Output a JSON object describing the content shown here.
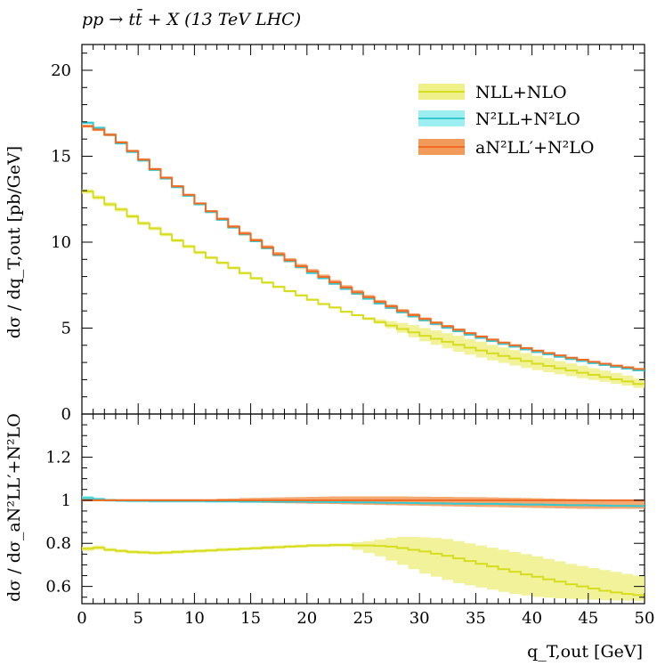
{
  "title": "pp → tt̄ + X (13 TeV LHC)",
  "xlabel": "q_T,out [GeV]",
  "ylabel_main": "dσ / dq_T,out [pb/GeV]",
  "ylabel_ratio": "dσ / dσ_aN²LL′+N²LO",
  "legend_labels": [
    "NLL+NLO",
    "N²LL+N²LO",
    "aN²LL′+N²LO"
  ],
  "colors": {
    "nll": "#d6dd1e",
    "nll_band": "#f0f08a",
    "n2ll": "#37c9d0",
    "n2ll_band": "#9deef0",
    "an2ll": "#ef6a22",
    "an2ll_band": "#f29a5a"
  },
  "chart_data": {
    "type": "line",
    "step": true,
    "x_edges": [
      0,
      1,
      2,
      3,
      4,
      5,
      6,
      7,
      8,
      9,
      10,
      11,
      12,
      13,
      14,
      15,
      16,
      17,
      18,
      19,
      20,
      21,
      22,
      23,
      24,
      25,
      26,
      27,
      28,
      29,
      30,
      31,
      32,
      33,
      34,
      35,
      36,
      37,
      38,
      39,
      40,
      41,
      42,
      43,
      44,
      45,
      46,
      47,
      48,
      49,
      50
    ],
    "xlim": [
      0,
      50
    ],
    "main": {
      "ylim": [
        0,
        21.5
      ],
      "yticks": [
        0,
        5,
        10,
        15,
        20
      ],
      "series": [
        {
          "name": "NLL+NLO",
          "values": [
            12.95,
            12.6,
            12.2,
            11.9,
            11.5,
            11.1,
            10.8,
            10.45,
            10.1,
            9.75,
            9.4,
            9.1,
            8.8,
            8.5,
            8.2,
            7.9,
            7.65,
            7.4,
            7.15,
            6.9,
            6.65,
            6.4,
            6.2,
            5.95,
            5.75,
            5.55,
            5.35,
            5.15,
            4.95,
            4.75,
            4.55,
            4.38,
            4.2,
            4.03,
            3.86,
            3.7,
            3.53,
            3.38,
            3.23,
            3.08,
            2.93,
            2.8,
            2.66,
            2.53,
            2.4,
            2.28,
            2.15,
            2.02,
            1.9,
            1.75
          ],
          "band_rel_low": [
            0.99,
            0.99,
            0.99,
            0.99,
            0.99,
            0.99,
            0.99,
            0.99,
            0.99,
            0.99,
            0.99,
            0.99,
            0.99,
            0.99,
            0.99,
            0.99,
            0.99,
            0.99,
            0.99,
            0.99,
            0.99,
            0.99,
            0.99,
            0.99,
            0.99,
            0.985,
            0.98,
            0.97,
            0.955,
            0.94,
            0.93,
            0.92,
            0.91,
            0.9,
            0.895,
            0.89,
            0.885,
            0.88,
            0.875,
            0.87,
            0.87,
            0.87,
            0.87,
            0.87,
            0.87,
            0.87,
            0.87,
            0.87,
            0.87,
            0.87
          ],
          "band_rel_high": [
            1.01,
            1.01,
            1.01,
            1.01,
            1.01,
            1.01,
            1.01,
            1.01,
            1.01,
            1.01,
            1.01,
            1.01,
            1.01,
            1.01,
            1.01,
            1.01,
            1.01,
            1.01,
            1.01,
            1.01,
            1.01,
            1.01,
            1.01,
            1.01,
            1.01,
            1.015,
            1.03,
            1.05,
            1.07,
            1.09,
            1.1,
            1.11,
            1.12,
            1.13,
            1.13,
            1.14,
            1.14,
            1.145,
            1.15,
            1.15,
            1.155,
            1.16,
            1.16,
            1.165,
            1.17,
            1.17,
            1.175,
            1.18,
            1.18,
            1.18
          ]
        },
        {
          "name": "N²LL+N²LO",
          "values": [
            16.95,
            16.65,
            16.25,
            15.75,
            15.25,
            14.75,
            14.2,
            13.7,
            13.2,
            12.7,
            12.2,
            11.75,
            11.3,
            10.85,
            10.45,
            10.05,
            9.65,
            9.25,
            8.9,
            8.55,
            8.2,
            7.9,
            7.58,
            7.28,
            7.0,
            6.7,
            6.43,
            6.18,
            5.92,
            5.68,
            5.45,
            5.24,
            5.02,
            4.82,
            4.62,
            4.43,
            4.25,
            4.08,
            3.92,
            3.76,
            3.61,
            3.47,
            3.33,
            3.2,
            3.08,
            2.96,
            2.85,
            2.74,
            2.64,
            2.54
          ],
          "band_rel_low": [
            0.995,
            0.995,
            0.995,
            0.995,
            0.995,
            0.995,
            0.995,
            0.995,
            0.995,
            0.995,
            0.995,
            0.995,
            0.995,
            0.995,
            0.995,
            0.995,
            0.995,
            0.995,
            0.995,
            0.995,
            0.995,
            0.995,
            0.995,
            0.995,
            0.995,
            0.995,
            0.995,
            0.995,
            0.995,
            0.995,
            0.995,
            0.995,
            0.995,
            0.995,
            0.995,
            0.995,
            0.995,
            0.995,
            0.995,
            0.995,
            0.995,
            0.995,
            0.995,
            0.995,
            0.995,
            0.995,
            0.995,
            0.995,
            0.995,
            0.995
          ],
          "band_rel_high": [
            1.005,
            1.005,
            1.005,
            1.005,
            1.005,
            1.005,
            1.005,
            1.005,
            1.005,
            1.005,
            1.005,
            1.005,
            1.005,
            1.005,
            1.005,
            1.005,
            1.005,
            1.005,
            1.005,
            1.005,
            1.005,
            1.005,
            1.005,
            1.005,
            1.005,
            1.005,
            1.005,
            1.005,
            1.005,
            1.005,
            1.005,
            1.005,
            1.005,
            1.005,
            1.005,
            1.005,
            1.005,
            1.005,
            1.005,
            1.005,
            1.005,
            1.005,
            1.005,
            1.005,
            1.005,
            1.005,
            1.005,
            1.005,
            1.005,
            1.005
          ]
        },
        {
          "name": "aN²LL′+N²LO",
          "values": [
            16.75,
            16.55,
            16.25,
            15.8,
            15.3,
            14.8,
            14.25,
            13.75,
            13.25,
            12.75,
            12.25,
            11.8,
            11.35,
            10.9,
            10.5,
            10.1,
            9.7,
            9.3,
            8.95,
            8.6,
            8.3,
            7.98,
            7.66,
            7.36,
            7.08,
            6.8,
            6.52,
            6.26,
            6.0,
            5.76,
            5.53,
            5.31,
            5.1,
            4.9,
            4.7,
            4.51,
            4.33,
            4.16,
            4.0,
            3.84,
            3.69,
            3.55,
            3.41,
            3.28,
            3.16,
            3.04,
            2.93,
            2.82,
            2.72,
            2.62
          ],
          "band_rel_low": [
            0.995,
            0.995,
            0.995,
            0.995,
            0.995,
            0.995,
            0.995,
            0.995,
            0.995,
            0.995,
            0.995,
            0.995,
            0.993,
            0.992,
            0.99,
            0.99,
            0.988,
            0.987,
            0.986,
            0.985,
            0.984,
            0.983,
            0.982,
            0.981,
            0.98,
            0.979,
            0.978,
            0.977,
            0.976,
            0.975,
            0.974,
            0.973,
            0.972,
            0.971,
            0.97,
            0.969,
            0.968,
            0.967,
            0.966,
            0.965,
            0.964,
            0.963,
            0.962,
            0.961,
            0.96,
            0.96,
            0.96,
            0.96,
            0.96,
            0.96
          ],
          "band_rel_high": [
            1.005,
            1.005,
            1.005,
            1.005,
            1.005,
            1.005,
            1.005,
            1.005,
            1.005,
            1.005,
            1.005,
            1.005,
            1.007,
            1.008,
            1.01,
            1.011,
            1.012,
            1.013,
            1.014,
            1.015,
            1.016,
            1.017,
            1.018,
            1.018,
            1.018,
            1.018,
            1.018,
            1.018,
            1.018,
            1.017,
            1.017,
            1.016,
            1.016,
            1.015,
            1.015,
            1.014,
            1.013,
            1.012,
            1.011,
            1.01,
            1.009,
            1.008,
            1.007,
            1.006,
            1.005,
            1.004,
            1.003,
            1.002,
            1.001,
            1.0
          ]
        }
      ]
    },
    "ratio": {
      "ylim": [
        0.52,
        1.4
      ],
      "yticks": [
        0.6,
        0.8,
        1,
        1.2
      ],
      "ytick_labels": [
        "0.6",
        "0.8",
        "1",
        "1.2"
      ],
      "series": [
        {
          "name": "NLL+NLO",
          "values": [
            0.775,
            0.78,
            0.77,
            0.765,
            0.76,
            0.758,
            0.755,
            0.757,
            0.76,
            0.762,
            0.765,
            0.767,
            0.77,
            0.772,
            0.775,
            0.777,
            0.78,
            0.782,
            0.785,
            0.787,
            0.79,
            0.79,
            0.792,
            0.792,
            0.79,
            0.79,
            0.788,
            0.785,
            0.778,
            0.77,
            0.762,
            0.752,
            0.742,
            0.73,
            0.718,
            0.705,
            0.693,
            0.68,
            0.668,
            0.656,
            0.645,
            0.633,
            0.622,
            0.61,
            0.6,
            0.59,
            0.58,
            0.572,
            0.565,
            0.56
          ],
          "band_low": [
            0.765,
            0.77,
            0.762,
            0.757,
            0.752,
            0.75,
            0.748,
            0.75,
            0.752,
            0.755,
            0.757,
            0.76,
            0.762,
            0.765,
            0.768,
            0.77,
            0.772,
            0.775,
            0.778,
            0.78,
            0.783,
            0.783,
            0.784,
            0.784,
            0.77,
            0.755,
            0.74,
            0.72,
            0.7,
            0.68,
            0.66,
            0.645,
            0.63,
            0.615,
            0.605,
            0.595,
            0.585,
            0.575,
            0.565,
            0.558,
            0.552,
            0.548,
            0.545,
            0.542,
            0.54,
            0.538,
            0.536,
            0.535,
            0.534,
            0.533
          ],
          "band_high": [
            0.785,
            0.79,
            0.778,
            0.773,
            0.768,
            0.766,
            0.763,
            0.765,
            0.768,
            0.77,
            0.773,
            0.775,
            0.778,
            0.78,
            0.782,
            0.785,
            0.788,
            0.79,
            0.792,
            0.795,
            0.797,
            0.798,
            0.8,
            0.8,
            0.805,
            0.81,
            0.818,
            0.825,
            0.83,
            0.83,
            0.828,
            0.825,
            0.82,
            0.81,
            0.8,
            0.79,
            0.78,
            0.77,
            0.76,
            0.75,
            0.74,
            0.728,
            0.717,
            0.705,
            0.695,
            0.685,
            0.676,
            0.667,
            0.658,
            0.65
          ]
        },
        {
          "name": "N²LL+N²LO",
          "values": [
            1.01,
            1.005,
            1.0,
            0.998,
            0.997,
            0.997,
            0.996,
            0.996,
            0.996,
            0.996,
            0.996,
            0.995,
            0.995,
            0.995,
            0.994,
            0.994,
            0.994,
            0.993,
            0.993,
            0.993,
            0.992,
            0.992,
            0.991,
            0.991,
            0.99,
            0.99,
            0.989,
            0.988,
            0.988,
            0.987,
            0.986,
            0.986,
            0.985,
            0.984,
            0.984,
            0.983,
            0.983,
            0.982,
            0.981,
            0.98,
            0.98,
            0.979,
            0.978,
            0.977,
            0.977,
            0.976,
            0.975,
            0.974,
            0.974,
            0.973
          ],
          "band_low": [
            1.0,
            0.998,
            0.993,
            0.991,
            0.99,
            0.99,
            0.989,
            0.989,
            0.989,
            0.989,
            0.989,
            0.988,
            0.988,
            0.988,
            0.987,
            0.987,
            0.987,
            0.986,
            0.986,
            0.986,
            0.985,
            0.985,
            0.984,
            0.984,
            0.983,
            0.983,
            0.982,
            0.981,
            0.981,
            0.98,
            0.979,
            0.979,
            0.978,
            0.977,
            0.977,
            0.976,
            0.976,
            0.975,
            0.974,
            0.973,
            0.973,
            0.972,
            0.971,
            0.97,
            0.97,
            0.969,
            0.968,
            0.967,
            0.967,
            0.966
          ],
          "band_high": [
            1.02,
            1.012,
            1.007,
            1.005,
            1.004,
            1.004,
            1.003,
            1.003,
            1.003,
            1.003,
            1.003,
            1.002,
            1.002,
            1.002,
            1.001,
            1.001,
            1.001,
            1.0,
            1.0,
            1.0,
            0.999,
            0.999,
            0.998,
            0.998,
            0.997,
            0.997,
            0.996,
            0.995,
            0.995,
            0.994,
            0.993,
            0.993,
            0.992,
            0.991,
            0.991,
            0.99,
            0.99,
            0.989,
            0.988,
            0.987,
            0.987,
            0.986,
            0.985,
            0.984,
            0.984,
            0.983,
            0.982,
            0.981,
            0.981,
            0.98
          ]
        },
        {
          "name": "aN²LL′+N²LO",
          "values": [
            1,
            1,
            1,
            1,
            1,
            1,
            1,
            1,
            1,
            1,
            1,
            1,
            1,
            1,
            1,
            1,
            1,
            1,
            1,
            1,
            1,
            1,
            1,
            1,
            1,
            1,
            1,
            1,
            1,
            1,
            1,
            1,
            1,
            1,
            1,
            1,
            1,
            1,
            1,
            1,
            1,
            1,
            1,
            1,
            1,
            1,
            1,
            1,
            1,
            1
          ],
          "band_low": [
            0.995,
            0.995,
            0.995,
            0.995,
            0.995,
            0.995,
            0.995,
            0.995,
            0.995,
            0.995,
            0.995,
            0.995,
            0.993,
            0.992,
            0.99,
            0.99,
            0.988,
            0.987,
            0.986,
            0.985,
            0.984,
            0.983,
            0.982,
            0.981,
            0.98,
            0.979,
            0.978,
            0.977,
            0.976,
            0.975,
            0.974,
            0.973,
            0.972,
            0.971,
            0.97,
            0.969,
            0.968,
            0.967,
            0.966,
            0.965,
            0.964,
            0.963,
            0.962,
            0.961,
            0.96,
            0.96,
            0.96,
            0.96,
            0.96,
            0.96
          ],
          "band_high": [
            1.005,
            1.005,
            1.005,
            1.005,
            1.005,
            1.005,
            1.005,
            1.005,
            1.005,
            1.005,
            1.005,
            1.005,
            1.007,
            1.008,
            1.01,
            1.011,
            1.012,
            1.013,
            1.014,
            1.015,
            1.016,
            1.017,
            1.018,
            1.018,
            1.018,
            1.018,
            1.018,
            1.018,
            1.018,
            1.017,
            1.017,
            1.016,
            1.016,
            1.015,
            1.015,
            1.014,
            1.013,
            1.012,
            1.011,
            1.01,
            1.009,
            1.008,
            1.007,
            1.006,
            1.005,
            1.004,
            1.003,
            1.002,
            1.001,
            1.0
          ]
        }
      ]
    },
    "xticks": [
      0,
      5,
      10,
      15,
      20,
      25,
      30,
      35,
      40,
      45,
      50
    ],
    "legend_position": "top-right"
  }
}
